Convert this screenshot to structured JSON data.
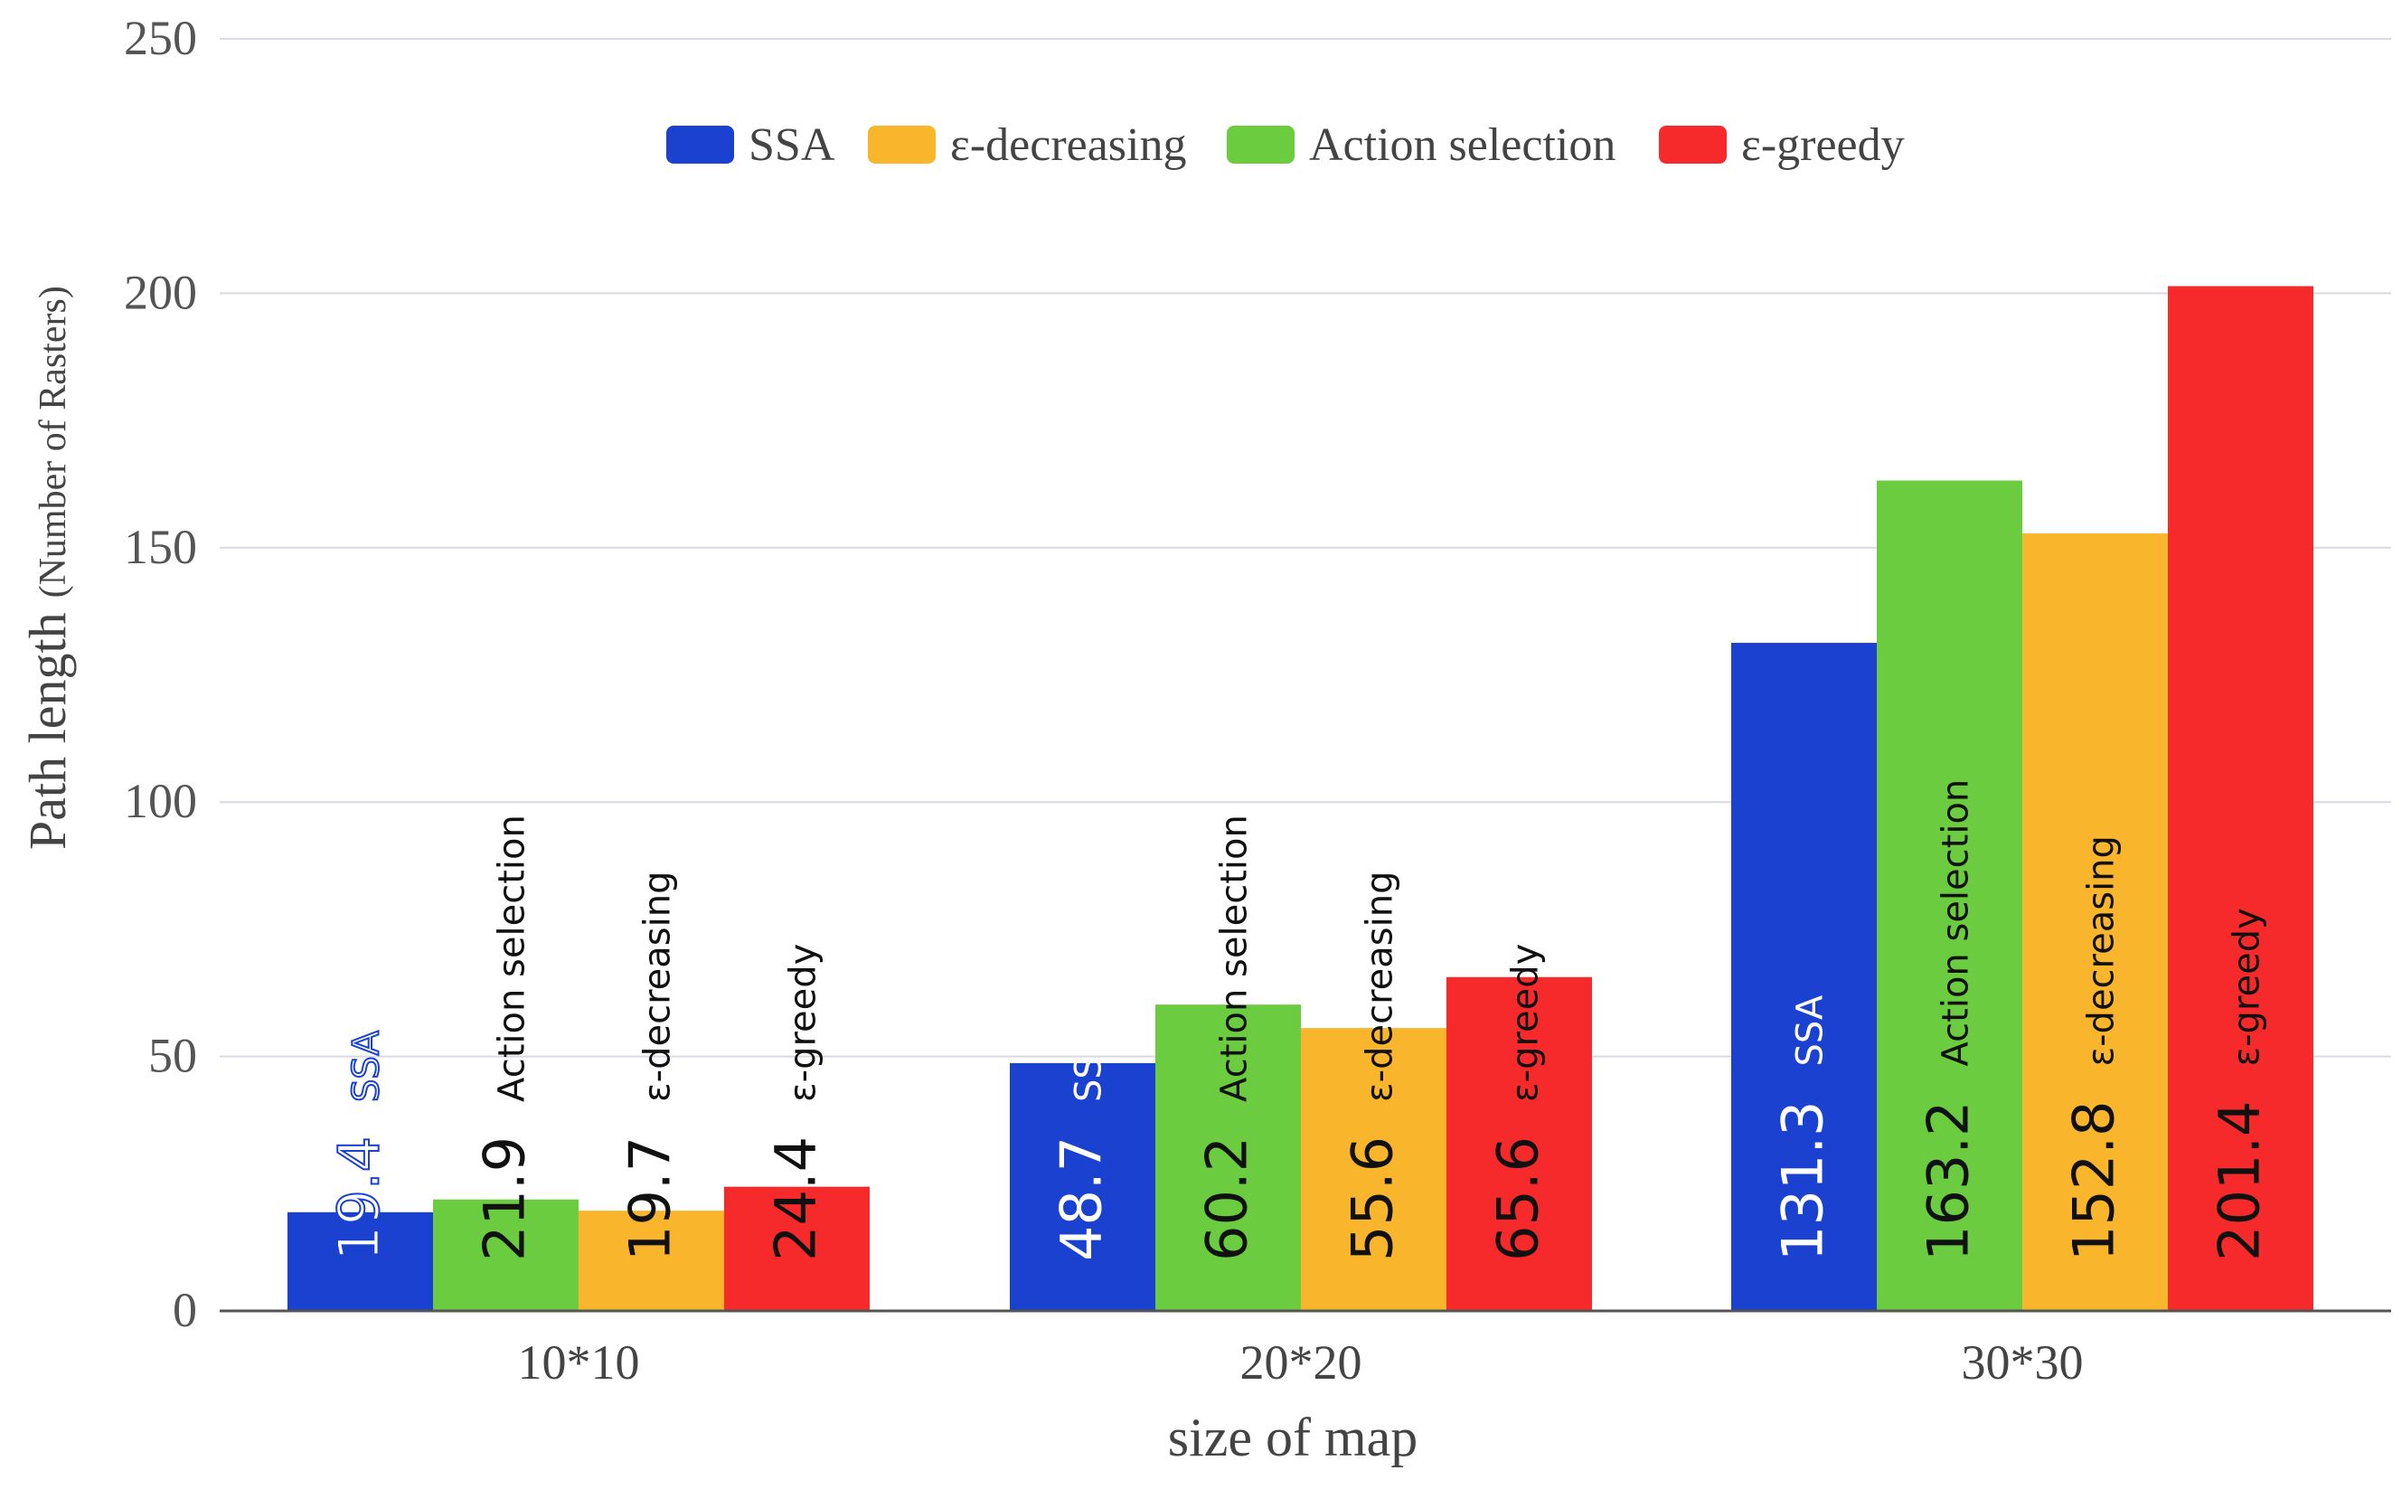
{
  "chart_data": {
    "type": "bar",
    "title": "",
    "xlabel": "size of map",
    "ylabel_main": "Path length",
    "ylabel_sub": "(Number of Rasters)",
    "categories": [
      "10*10",
      "20*20",
      "30*30"
    ],
    "ylim": [
      0,
      250
    ],
    "yticks": [
      0,
      50,
      100,
      150,
      200,
      250
    ],
    "grid": true,
    "legend_position": "top-center",
    "legend": [
      {
        "name": "SSA",
        "color": "#1a41d0"
      },
      {
        "name": "ε-decreasing",
        "color": "#f9b62c"
      },
      {
        "name": "Action selection",
        "color": "#6bcc3f"
      },
      {
        "name": "ε-greedy",
        "color": "#f62a2a"
      }
    ],
    "bar_order": [
      "SSA",
      "Action selection",
      "ε-decreasing",
      "ε-greedy"
    ],
    "series": [
      {
        "name": "SSA",
        "color": "#1a41d0",
        "values": [
          19.4,
          48.7,
          131.3
        ],
        "value_labels": [
          "19.4",
          "48.7",
          "131.3"
        ]
      },
      {
        "name": "Action selection",
        "color": "#6bcc3f",
        "values": [
          21.9,
          60.2,
          163.2
        ],
        "value_labels": [
          "21.9",
          "60.2",
          "163.2"
        ]
      },
      {
        "name": "ε-decreasing",
        "color": "#f9b62c",
        "values": [
          19.7,
          55.6,
          152.8
        ],
        "value_labels": [
          "19.7",
          "55.6",
          "152.8"
        ]
      },
      {
        "name": "ε-greedy",
        "color": "#f62a2a",
        "values": [
          24.4,
          65.6,
          201.4
        ],
        "value_labels": [
          "24.4",
          "65.6",
          "201.4"
        ]
      }
    ]
  }
}
